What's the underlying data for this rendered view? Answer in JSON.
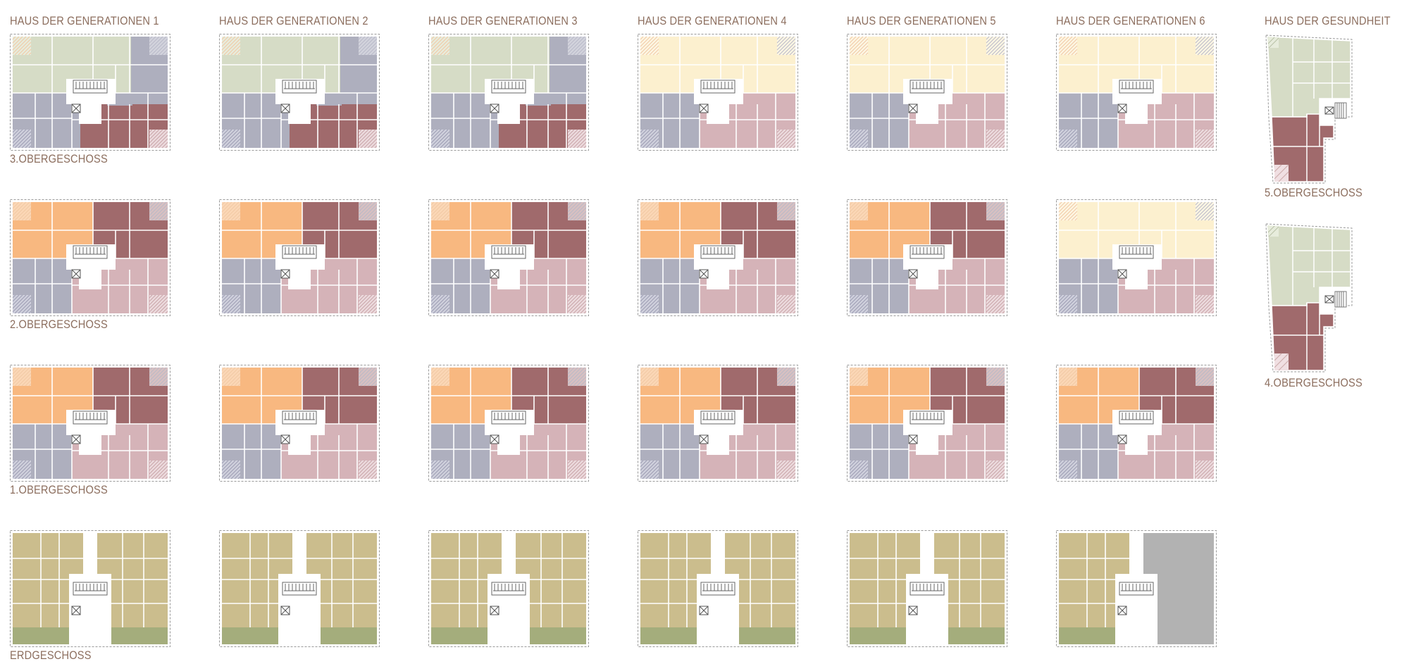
{
  "buildings": [
    {
      "title": "HAUS DER GENERATIONEN 1",
      "floors": [
        "std-a",
        "mix",
        "mix",
        "ground"
      ]
    },
    {
      "title": "HAUS DER GENERATIONEN 2",
      "floors": [
        "std-a",
        "mix",
        "mix",
        "ground"
      ]
    },
    {
      "title": "HAUS DER GENERATIONEN 3",
      "floors": [
        "std-a",
        "mix",
        "mix",
        "ground"
      ]
    },
    {
      "title": "HAUS DER GENERATIONEN 4",
      "floors": [
        "yellow",
        "mix",
        "mix",
        "ground"
      ]
    },
    {
      "title": "HAUS DER GENERATIONEN 5",
      "floors": [
        "yellow",
        "mix",
        "mix",
        "ground"
      ]
    },
    {
      "title": "HAUS DER GENERATIONEN 6",
      "floors": [
        "yellow",
        "yellow",
        "mix",
        "ground-grey"
      ]
    }
  ],
  "floor_labels": [
    "3.OBERGESCHOSS",
    "2.OBERGESCHOSS",
    "1.OBERGESCHOSS",
    "ERDGESCHOSS"
  ],
  "health_house": {
    "title": "HAUS DER GESUNDHEIT",
    "floor_labels": [
      "5.OBERGESCHOSS",
      "4.OBERGESCHOSS"
    ]
  },
  "colors": {
    "sage": "#d6dcc6",
    "slate": "#aeafbe",
    "maroon": "#a06a6c",
    "rose": "#d5b3b8",
    "orange": "#f8b880",
    "cream": "#fcf0cf",
    "olive": "#cbbd8d",
    "green": "#a4ad7c",
    "grey": "#b2b2b2",
    "label": "#8c6e5e"
  }
}
